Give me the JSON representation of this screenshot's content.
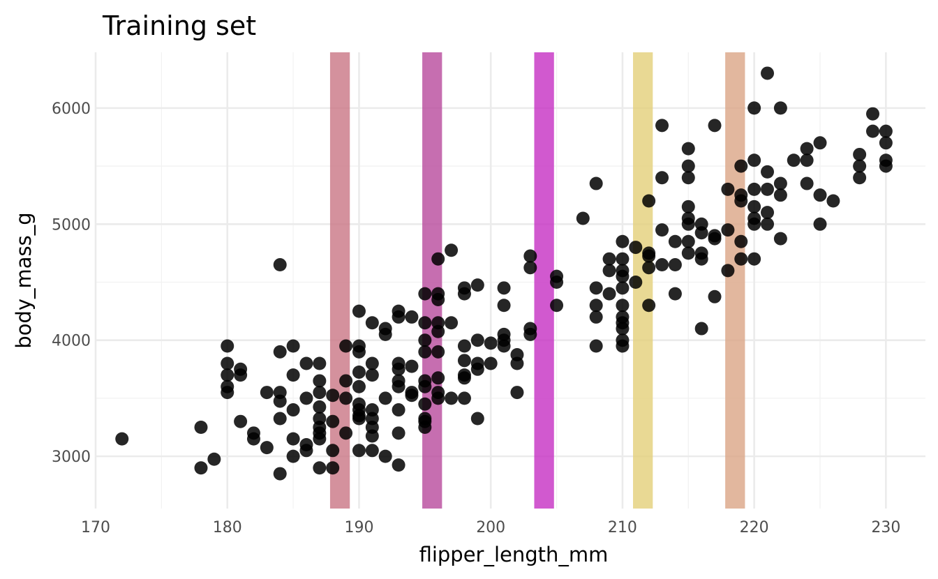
{
  "chart_data": {
    "type": "scatter",
    "title": "Training set",
    "xlabel": "flipper_length_mm",
    "ylabel": "body_mass_g",
    "xlim": [
      170,
      233
    ],
    "ylim": [
      2550,
      6480
    ],
    "x_ticks": [
      170,
      180,
      190,
      200,
      210,
      220,
      230
    ],
    "y_ticks": [
      3000,
      4000,
      5000,
      6000
    ],
    "grid": true,
    "legend": "none",
    "point_color": "#000000",
    "bands": [
      {
        "x0": 187.8,
        "x1": 189.3,
        "color": "#c97585"
      },
      {
        "x0": 194.8,
        "x1": 196.3,
        "color": "#b84a9c"
      },
      {
        "x0": 203.3,
        "x1": 204.8,
        "color": "#c52fc3"
      },
      {
        "x0": 210.8,
        "x1": 212.3,
        "color": "#e3cf79"
      },
      {
        "x0": 217.8,
        "x1": 219.3,
        "color": "#dba586"
      }
    ],
    "points": [
      [
        172,
        3150
      ],
      [
        178,
        2900
      ],
      [
        178,
        3250
      ],
      [
        179,
        2975
      ],
      [
        180,
        3950
      ],
      [
        180,
        3800
      ],
      [
        180,
        3700
      ],
      [
        180,
        3600
      ],
      [
        180,
        3550
      ],
      [
        181,
        3750
      ],
      [
        181,
        3700
      ],
      [
        181,
        3300
      ],
      [
        182,
        3200
      ],
      [
        182,
        3150
      ],
      [
        183,
        3550
      ],
      [
        183,
        3075
      ],
      [
        184,
        4650
      ],
      [
        184,
        3900
      ],
      [
        184,
        3550
      ],
      [
        184,
        3475
      ],
      [
        184,
        3325
      ],
      [
        184,
        2850
      ],
      [
        185,
        3950
      ],
      [
        185,
        3700
      ],
      [
        185,
        3400
      ],
      [
        185,
        3150
      ],
      [
        185,
        3000
      ],
      [
        186,
        3800
      ],
      [
        186,
        3500
      ],
      [
        186,
        3100
      ],
      [
        186,
        3050
      ],
      [
        187,
        3800
      ],
      [
        187,
        3650
      ],
      [
        187,
        3550
      ],
      [
        187,
        3425
      ],
      [
        187,
        3325
      ],
      [
        187,
        3250
      ],
      [
        187,
        3200
      ],
      [
        187,
        3150
      ],
      [
        187,
        2900
      ],
      [
        188,
        3525
      ],
      [
        188,
        3300
      ],
      [
        188,
        3050
      ],
      [
        188,
        2900
      ],
      [
        189,
        3950
      ],
      [
        189,
        3650
      ],
      [
        189,
        3500
      ],
      [
        189,
        3200
      ],
      [
        190,
        4250
      ],
      [
        190,
        3950
      ],
      [
        190,
        3900
      ],
      [
        190,
        3725
      ],
      [
        190,
        3600
      ],
      [
        190,
        3450
      ],
      [
        190,
        3400
      ],
      [
        190,
        3350
      ],
      [
        190,
        3325
      ],
      [
        190,
        3050
      ],
      [
        191,
        4150
      ],
      [
        191,
        3800
      ],
      [
        191,
        3700
      ],
      [
        191,
        3400
      ],
      [
        191,
        3325
      ],
      [
        191,
        3250
      ],
      [
        191,
        3175
      ],
      [
        191,
        3050
      ],
      [
        192,
        4100
      ],
      [
        192,
        4050
      ],
      [
        192,
        3500
      ],
      [
        192,
        3000
      ],
      [
        193,
        4250
      ],
      [
        193,
        4200
      ],
      [
        193,
        3800
      ],
      [
        193,
        3750
      ],
      [
        193,
        3650
      ],
      [
        193,
        3600
      ],
      [
        193,
        3400
      ],
      [
        193,
        3200
      ],
      [
        193,
        2925
      ],
      [
        194,
        4200
      ],
      [
        194,
        3775
      ],
      [
        194,
        3550
      ],
      [
        194,
        3525
      ],
      [
        195,
        4400
      ],
      [
        195,
        4150
      ],
      [
        195,
        4000
      ],
      [
        195,
        3900
      ],
      [
        195,
        3650
      ],
      [
        195,
        3600
      ],
      [
        195,
        3450
      ],
      [
        195,
        3325
      ],
      [
        195,
        3300
      ],
      [
        195,
        3250
      ],
      [
        196,
        4700
      ],
      [
        196,
        4400
      ],
      [
        196,
        4350
      ],
      [
        196,
        4150
      ],
      [
        196,
        4075
      ],
      [
        196,
        3900
      ],
      [
        196,
        3675
      ],
      [
        196,
        3550
      ],
      [
        196,
        3500
      ],
      [
        197,
        4775
      ],
      [
        197,
        4150
      ],
      [
        197,
        3500
      ],
      [
        198,
        4450
      ],
      [
        198,
        4400
      ],
      [
        198,
        3950
      ],
      [
        198,
        3825
      ],
      [
        198,
        3700
      ],
      [
        198,
        3675
      ],
      [
        198,
        3500
      ],
      [
        199,
        4475
      ],
      [
        199,
        4000
      ],
      [
        199,
        3800
      ],
      [
        199,
        3750
      ],
      [
        199,
        3325
      ],
      [
        200,
        3975
      ],
      [
        200,
        3800
      ],
      [
        201,
        4450
      ],
      [
        201,
        4300
      ],
      [
        201,
        4050
      ],
      [
        201,
        4000
      ],
      [
        201,
        3950
      ],
      [
        202,
        3875
      ],
      [
        202,
        3800
      ],
      [
        202,
        3550
      ],
      [
        203,
        4725
      ],
      [
        203,
        4625
      ],
      [
        203,
        4100
      ],
      [
        203,
        4050
      ],
      [
        205,
        4550
      ],
      [
        205,
        4500
      ],
      [
        205,
        4300
      ],
      [
        207,
        5050
      ],
      [
        208,
        5350
      ],
      [
        208,
        4450
      ],
      [
        208,
        4300
      ],
      [
        208,
        4200
      ],
      [
        208,
        3950
      ],
      [
        209,
        4700
      ],
      [
        209,
        4600
      ],
      [
        209,
        4400
      ],
      [
        210,
        4850
      ],
      [
        210,
        4700
      ],
      [
        210,
        4600
      ],
      [
        210,
        4550
      ],
      [
        210,
        4450
      ],
      [
        210,
        4300
      ],
      [
        210,
        4200
      ],
      [
        210,
        4150
      ],
      [
        210,
        4100
      ],
      [
        210,
        4000
      ],
      [
        210,
        3950
      ],
      [
        211,
        4800
      ],
      [
        211,
        4500
      ],
      [
        212,
        5200
      ],
      [
        212,
        4750
      ],
      [
        212,
        4725
      ],
      [
        212,
        4625
      ],
      [
        212,
        4300
      ],
      [
        213,
        5850
      ],
      [
        213,
        5400
      ],
      [
        213,
        4950
      ],
      [
        213,
        4650
      ],
      [
        214,
        4850
      ],
      [
        214,
        4650
      ],
      [
        214,
        4400
      ],
      [
        215,
        5650
      ],
      [
        215,
        5500
      ],
      [
        215,
        5400
      ],
      [
        215,
        5150
      ],
      [
        215,
        5050
      ],
      [
        215,
        5000
      ],
      [
        215,
        4850
      ],
      [
        215,
        4750
      ],
      [
        216,
        5000
      ],
      [
        216,
        4925
      ],
      [
        216,
        4750
      ],
      [
        216,
        4700
      ],
      [
        216,
        4100
      ],
      [
        217,
        5850
      ],
      [
        217,
        4900
      ],
      [
        217,
        4875
      ],
      [
        217,
        4375
      ],
      [
        218,
        5300
      ],
      [
        218,
        4950
      ],
      [
        218,
        4600
      ],
      [
        219,
        5500
      ],
      [
        219,
        5250
      ],
      [
        219,
        5200
      ],
      [
        219,
        4850
      ],
      [
        219,
        4700
      ],
      [
        220,
        6000
      ],
      [
        220,
        5550
      ],
      [
        220,
        5300
      ],
      [
        220,
        5150
      ],
      [
        220,
        5050
      ],
      [
        220,
        5000
      ],
      [
        220,
        4700
      ],
      [
        221,
        6300
      ],
      [
        221,
        5450
      ],
      [
        221,
        5300
      ],
      [
        221,
        5100
      ],
      [
        221,
        5000
      ],
      [
        222,
        6000
      ],
      [
        222,
        5350
      ],
      [
        222,
        5250
      ],
      [
        222,
        4875
      ],
      [
        223,
        5550
      ],
      [
        224,
        5650
      ],
      [
        224,
        5550
      ],
      [
        224,
        5350
      ],
      [
        225,
        5700
      ],
      [
        225,
        5250
      ],
      [
        225,
        5000
      ],
      [
        226,
        5200
      ],
      [
        228,
        5600
      ],
      [
        228,
        5500
      ],
      [
        228,
        5400
      ],
      [
        229,
        5950
      ],
      [
        229,
        5800
      ],
      [
        230,
        5800
      ],
      [
        230,
        5700
      ],
      [
        230,
        5550
      ],
      [
        230,
        5500
      ]
    ]
  }
}
